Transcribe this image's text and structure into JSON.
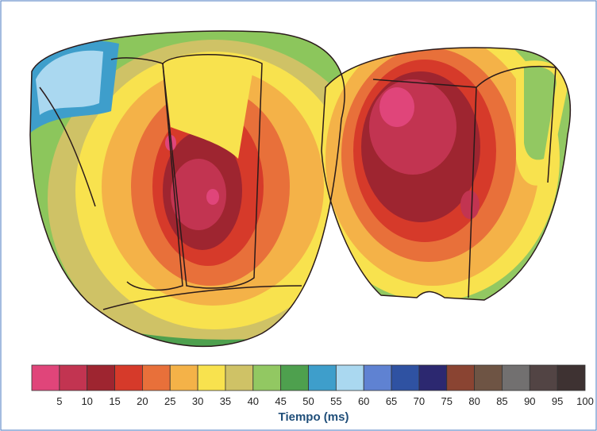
{
  "legend": {
    "colors": [
      "#e0457a",
      "#c23451",
      "#9e2530",
      "#d63a2a",
      "#e8703a",
      "#f4b248",
      "#f8e24e",
      "#cfc266",
      "#92c862",
      "#4ea04e",
      "#3e9ecb",
      "#aad8f0",
      "#5f82d2",
      "#2f52a2",
      "#2c2870",
      "#8a4432",
      "#6e5444",
      "#727070",
      "#524444",
      "#3e3232"
    ],
    "ticks": [
      5,
      10,
      15,
      20,
      25,
      30,
      35,
      40,
      45,
      50,
      55,
      60,
      65,
      70,
      75,
      80,
      85,
      90,
      95,
      100
    ],
    "label": "Tiempo (ms)"
  }
}
